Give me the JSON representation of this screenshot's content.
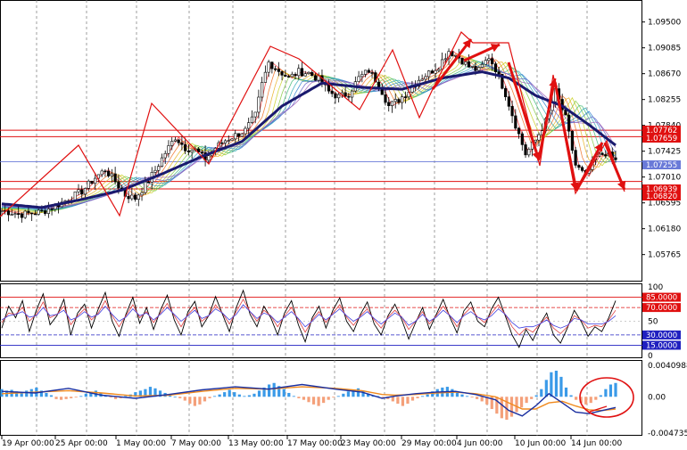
{
  "chart_data": [
    {
      "type": "candlestick",
      "panel": "price",
      "y_ticks": [
        "1.09500",
        "1.09085",
        "1.08670",
        "1.08255",
        "1.07840",
        "1.07425",
        "1.07010",
        "1.06595",
        "1.06180",
        "1.05765"
      ],
      "ylim": [
        1.0556,
        1.0971
      ],
      "resistance_levels": [
        {
          "label": "1.07762",
          "value": 1.07762
        },
        {
          "label": "1.07659",
          "value": 1.07659
        }
      ],
      "support_levels": [
        {
          "label": "1.06939",
          "value": 1.06939
        },
        {
          "label": "1.06820",
          "value": 1.0682
        }
      ],
      "current_price": {
        "label": "1.07255",
        "value": 1.07255
      },
      "close_path": [
        [
          0,
          1.0647
        ],
        [
          6,
          1.0641
        ],
        [
          12,
          1.0645
        ],
        [
          18,
          1.066
        ],
        [
          24,
          1.0678
        ],
        [
          28,
          1.07
        ],
        [
          31,
          1.0713
        ],
        [
          34,
          1.0694
        ],
        [
          37,
          1.0672
        ],
        [
          40,
          1.0667
        ],
        [
          43,
          1.0688
        ],
        [
          46,
          1.0712
        ],
        [
          49,
          1.074
        ],
        [
          52,
          1.0765
        ],
        [
          55,
          1.0748
        ],
        [
          58,
          1.0744
        ],
        [
          61,
          1.073
        ],
        [
          64,
          1.0748
        ],
        [
          67,
          1.076
        ],
        [
          70,
          1.0768
        ],
        [
          73,
          1.0776
        ],
        [
          76,
          1.08
        ],
        [
          78,
          1.085
        ],
        [
          80,
          1.0885
        ],
        [
          83,
          1.0872
        ],
        [
          86,
          1.086
        ],
        [
          89,
          1.087
        ],
        [
          92,
          1.0868
        ],
        [
          95,
          1.0858
        ],
        [
          98,
          1.0838
        ],
        [
          101,
          1.083
        ],
        [
          104,
          1.0835
        ],
        [
          107,
          1.086
        ],
        [
          110,
          1.0872
        ],
        [
          113,
          1.085
        ],
        [
          116,
          1.0815
        ],
        [
          119,
          1.0825
        ],
        [
          122,
          1.084
        ],
        [
          125,
          1.0858
        ],
        [
          128,
          1.0868
        ],
        [
          131,
          1.088
        ],
        [
          134,
          1.0904
        ],
        [
          137,
          1.0893
        ],
        [
          140,
          1.0878
        ],
        [
          143,
          1.0872
        ],
        [
          146,
          1.0894
        ],
        [
          148,
          1.0875
        ],
        [
          151,
          1.0835
        ],
        [
          154,
          1.0785
        ],
        [
          157,
          1.0738
        ],
        [
          160,
          1.076
        ],
        [
          163,
          1.079
        ],
        [
          166,
          1.0838
        ],
        [
          169,
          1.0795
        ],
        [
          172,
          1.072
        ],
        [
          175,
          1.0702
        ],
        [
          178,
          1.0733
        ],
        [
          181,
          1.074
        ],
        [
          184,
          1.0727
        ]
      ],
      "ma_path": [
        [
          0,
          1.0658
        ],
        [
          12,
          1.0652
        ],
        [
          24,
          1.0665
        ],
        [
          36,
          1.068
        ],
        [
          48,
          1.0706
        ],
        [
          60,
          1.0734
        ],
        [
          72,
          1.0758
        ],
        [
          84,
          1.0815
        ],
        [
          96,
          1.0852
        ],
        [
          108,
          1.0845
        ],
        [
          120,
          1.0842
        ],
        [
          132,
          1.086
        ],
        [
          144,
          1.087
        ],
        [
          152,
          1.086
        ],
        [
          160,
          1.0832
        ],
        [
          168,
          1.0815
        ],
        [
          176,
          1.0785
        ],
        [
          184,
          1.0752
        ]
      ],
      "bar_count": 185
    },
    {
      "type": "line",
      "panel": "oscillator",
      "ylim": [
        0,
        100
      ],
      "y_ticks": [
        "100",
        "50",
        "0"
      ],
      "levels": [
        {
          "label": "85.0000",
          "value": 85
        },
        {
          "label": "70.0000",
          "value": 70
        },
        {
          "label": "30.0000",
          "value": 30
        },
        {
          "label": "15.0000",
          "value": 15
        }
      ],
      "series": [
        {
          "values": [
            40,
            72,
            55,
            80,
            35,
            66,
            90,
            45,
            58,
            82,
            30,
            62,
            75,
            40,
            68,
            92,
            50,
            28,
            60,
            85,
            47,
            70,
            38,
            66,
            88,
            52,
            30,
            64,
            79,
            42,
            58,
            86,
            60,
            35,
            70,
            95,
            60,
            42,
            72,
            55,
            30,
            62,
            80,
            45,
            20,
            55,
            72,
            40,
            66,
            84,
            50,
            35,
            60,
            78,
            46,
            30,
            58,
            75,
            52,
            24,
            48,
            70,
            38,
            60,
            82,
            55,
            33,
            65,
            78,
            50,
            42,
            68,
            85,
            58,
            30,
            12,
            38,
            22,
            45,
            62,
            30,
            18,
            40,
            66,
            50,
            28,
            42,
            35,
            55,
            80
          ]
        },
        {
          "values": [
            48,
            62,
            60,
            70,
            50,
            60,
            78,
            55,
            60,
            72,
            45,
            58,
            68,
            52,
            62,
            80,
            58,
            42,
            58,
            74,
            55,
            64,
            48,
            62,
            76,
            58,
            42,
            60,
            70,
            50,
            58,
            74,
            62,
            46,
            64,
            82,
            64,
            50,
            66,
            58,
            42,
            58,
            70,
            52,
            34,
            52,
            64,
            48,
            62,
            74,
            56,
            44,
            58,
            68,
            52,
            40,
            56,
            66,
            56,
            38,
            50,
            64,
            46,
            58,
            72,
            58,
            42,
            60,
            70,
            56,
            48,
            62,
            74,
            60,
            42,
            30,
            40,
            34,
            46,
            56,
            40,
            32,
            42,
            58,
            52,
            40,
            44,
            42,
            52,
            66
          ]
        },
        {
          "values": [
            52,
            58,
            60,
            64,
            56,
            58,
            70,
            58,
            60,
            66,
            52,
            56,
            64,
            56,
            60,
            72,
            60,
            50,
            56,
            68,
            58,
            62,
            52,
            60,
            70,
            60,
            50,
            58,
            66,
            54,
            58,
            68,
            62,
            52,
            60,
            74,
            64,
            54,
            62,
            58,
            48,
            56,
            64,
            54,
            42,
            50,
            60,
            52,
            60,
            68,
            58,
            50,
            56,
            64,
            54,
            46,
            54,
            62,
            56,
            44,
            50,
            60,
            50,
            56,
            66,
            58,
            48,
            58,
            64,
            56,
            52,
            58,
            68,
            60,
            48,
            40,
            42,
            42,
            46,
            52,
            44,
            40,
            44,
            54,
            52,
            46,
            46,
            46,
            50,
            58
          ]
        }
      ]
    },
    {
      "type": "bar",
      "panel": "macd",
      "ylim": [
        -0.0047358,
        0.0040988
      ],
      "y_ticks": [
        "0.0040988",
        "0.00",
        "-0.0047358"
      ],
      "x_labels": [
        "19 Apr 00:00",
        "25 Apr 00:00",
        "1 May 00:00",
        "7 May 00:00",
        "13 May 00:00",
        "17 May 00:00",
        "23 May 00:00",
        "29 May 00:00",
        "4 Jun 00:00",
        "10 Jun 00:00",
        "14 Jun 00:00"
      ],
      "colors": {
        "positive": "#3a9ae8",
        "negative": "#f4a07a",
        "macd_line": "#1a2fa0",
        "signal_line": "#f08a1e"
      },
      "histogram": [
        0.001,
        0.0008,
        0.0009,
        0.0007,
        0.0006,
        0.0008,
        0.001,
        0.0012,
        0.0008,
        0.0005,
        0.0002,
        -0.0003,
        -0.0004,
        -0.0003,
        -0.0002,
        -0.0001,
        0.0001,
        0.0004,
        0.0006,
        0.0008,
        0.0005,
        0.0002,
        -0.0001,
        -0.0003,
        -0.0002,
        0.0001,
        0.0003,
        0.0006,
        0.0008,
        0.001,
        0.0013,
        0.0011,
        0.0008,
        0.0005,
        0.0002,
        0.0,
        -0.0002,
        -0.0005,
        -0.0009,
        -0.0012,
        -0.001,
        -0.0006,
        -0.0002,
        0.0001,
        0.0003,
        0.0006,
        0.0009,
        0.0006,
        0.0003,
        0.0001,
        0.0002,
        0.0004,
        0.0008,
        0.0012,
        0.0016,
        0.0018,
        0.0014,
        0.001,
        0.0005,
        0.0001,
        -0.0002,
        -0.0004,
        -0.0007,
        -0.001,
        -0.0012,
        -0.0008,
        -0.0004,
        -0.0001,
        0.0001,
        0.0004,
        0.0007,
        0.0009,
        0.0011,
        0.0008,
        0.0004,
        0.0002,
        0.0001,
        -0.0001,
        -0.0003,
        -0.0006,
        -0.0009,
        -0.0012,
        -0.0009,
        -0.0005,
        -0.0002,
        0.0001,
        0.0003,
        0.0007,
        0.001,
        0.0012,
        0.0013,
        0.001,
        0.0006,
        0.0003,
        0.0001,
        -0.0001,
        -0.0003,
        -0.0006,
        -0.001,
        -0.0016,
        -0.0022,
        -0.0028,
        -0.003,
        -0.0026,
        -0.002,
        -0.0014,
        -0.0008,
        -0.0003,
        0.0002,
        0.001,
        0.0022,
        0.0032,
        0.0034,
        0.0026,
        0.0012,
        0.0002,
        -0.0004,
        -0.0008,
        -0.001,
        -0.0008,
        -0.0004,
        0.0002,
        0.001,
        0.0016,
        0.0018
      ],
      "macd_path": [
        [
          0,
          0.0007
        ],
        [
          10,
          0.0005
        ],
        [
          20,
          0.0011
        ],
        [
          30,
          0.0002
        ],
        [
          40,
          -0.0002
        ],
        [
          50,
          0.0003
        ],
        [
          60,
          0.0009
        ],
        [
          70,
          0.0013
        ],
        [
          80,
          0.001
        ],
        [
          90,
          0.0016
        ],
        [
          100,
          0.001
        ],
        [
          108,
          0.0006
        ],
        [
          114,
          -0.0002
        ],
        [
          118,
          0.0001
        ],
        [
          124,
          0.0004
        ],
        [
          130,
          0.0006
        ],
        [
          136,
          0.0007
        ],
        [
          142,
          0.0003
        ],
        [
          148,
          -0.0004
        ],
        [
          152,
          -0.0018
        ],
        [
          156,
          -0.0025
        ],
        [
          160,
          -0.0012
        ],
        [
          164,
          0.0004
        ],
        [
          168,
          -0.0008
        ],
        [
          172,
          -0.002
        ],
        [
          176,
          -0.0022
        ],
        [
          180,
          -0.0018
        ],
        [
          184,
          -0.0014
        ]
      ],
      "signal_path": [
        [
          0,
          0.0004
        ],
        [
          10,
          0.0006
        ],
        [
          20,
          0.0008
        ],
        [
          30,
          0.0005
        ],
        [
          40,
          0.0001
        ],
        [
          50,
          0.0002
        ],
        [
          60,
          0.0007
        ],
        [
          70,
          0.0011
        ],
        [
          80,
          0.001
        ],
        [
          90,
          0.0013
        ],
        [
          100,
          0.0011
        ],
        [
          108,
          0.0008
        ],
        [
          114,
          0.0003
        ],
        [
          118,
          0.0002
        ],
        [
          124,
          0.0003
        ],
        [
          130,
          0.0005
        ],
        [
          136,
          0.0006
        ],
        [
          142,
          0.0004
        ],
        [
          148,
          0.0
        ],
        [
          152,
          -0.0008
        ],
        [
          156,
          -0.0016
        ],
        [
          160,
          -0.0016
        ],
        [
          164,
          -0.0008
        ],
        [
          168,
          -0.0006
        ],
        [
          172,
          -0.0012
        ],
        [
          176,
          -0.0017
        ],
        [
          180,
          -0.0018
        ],
        [
          184,
          -0.0016
        ]
      ]
    }
  ]
}
